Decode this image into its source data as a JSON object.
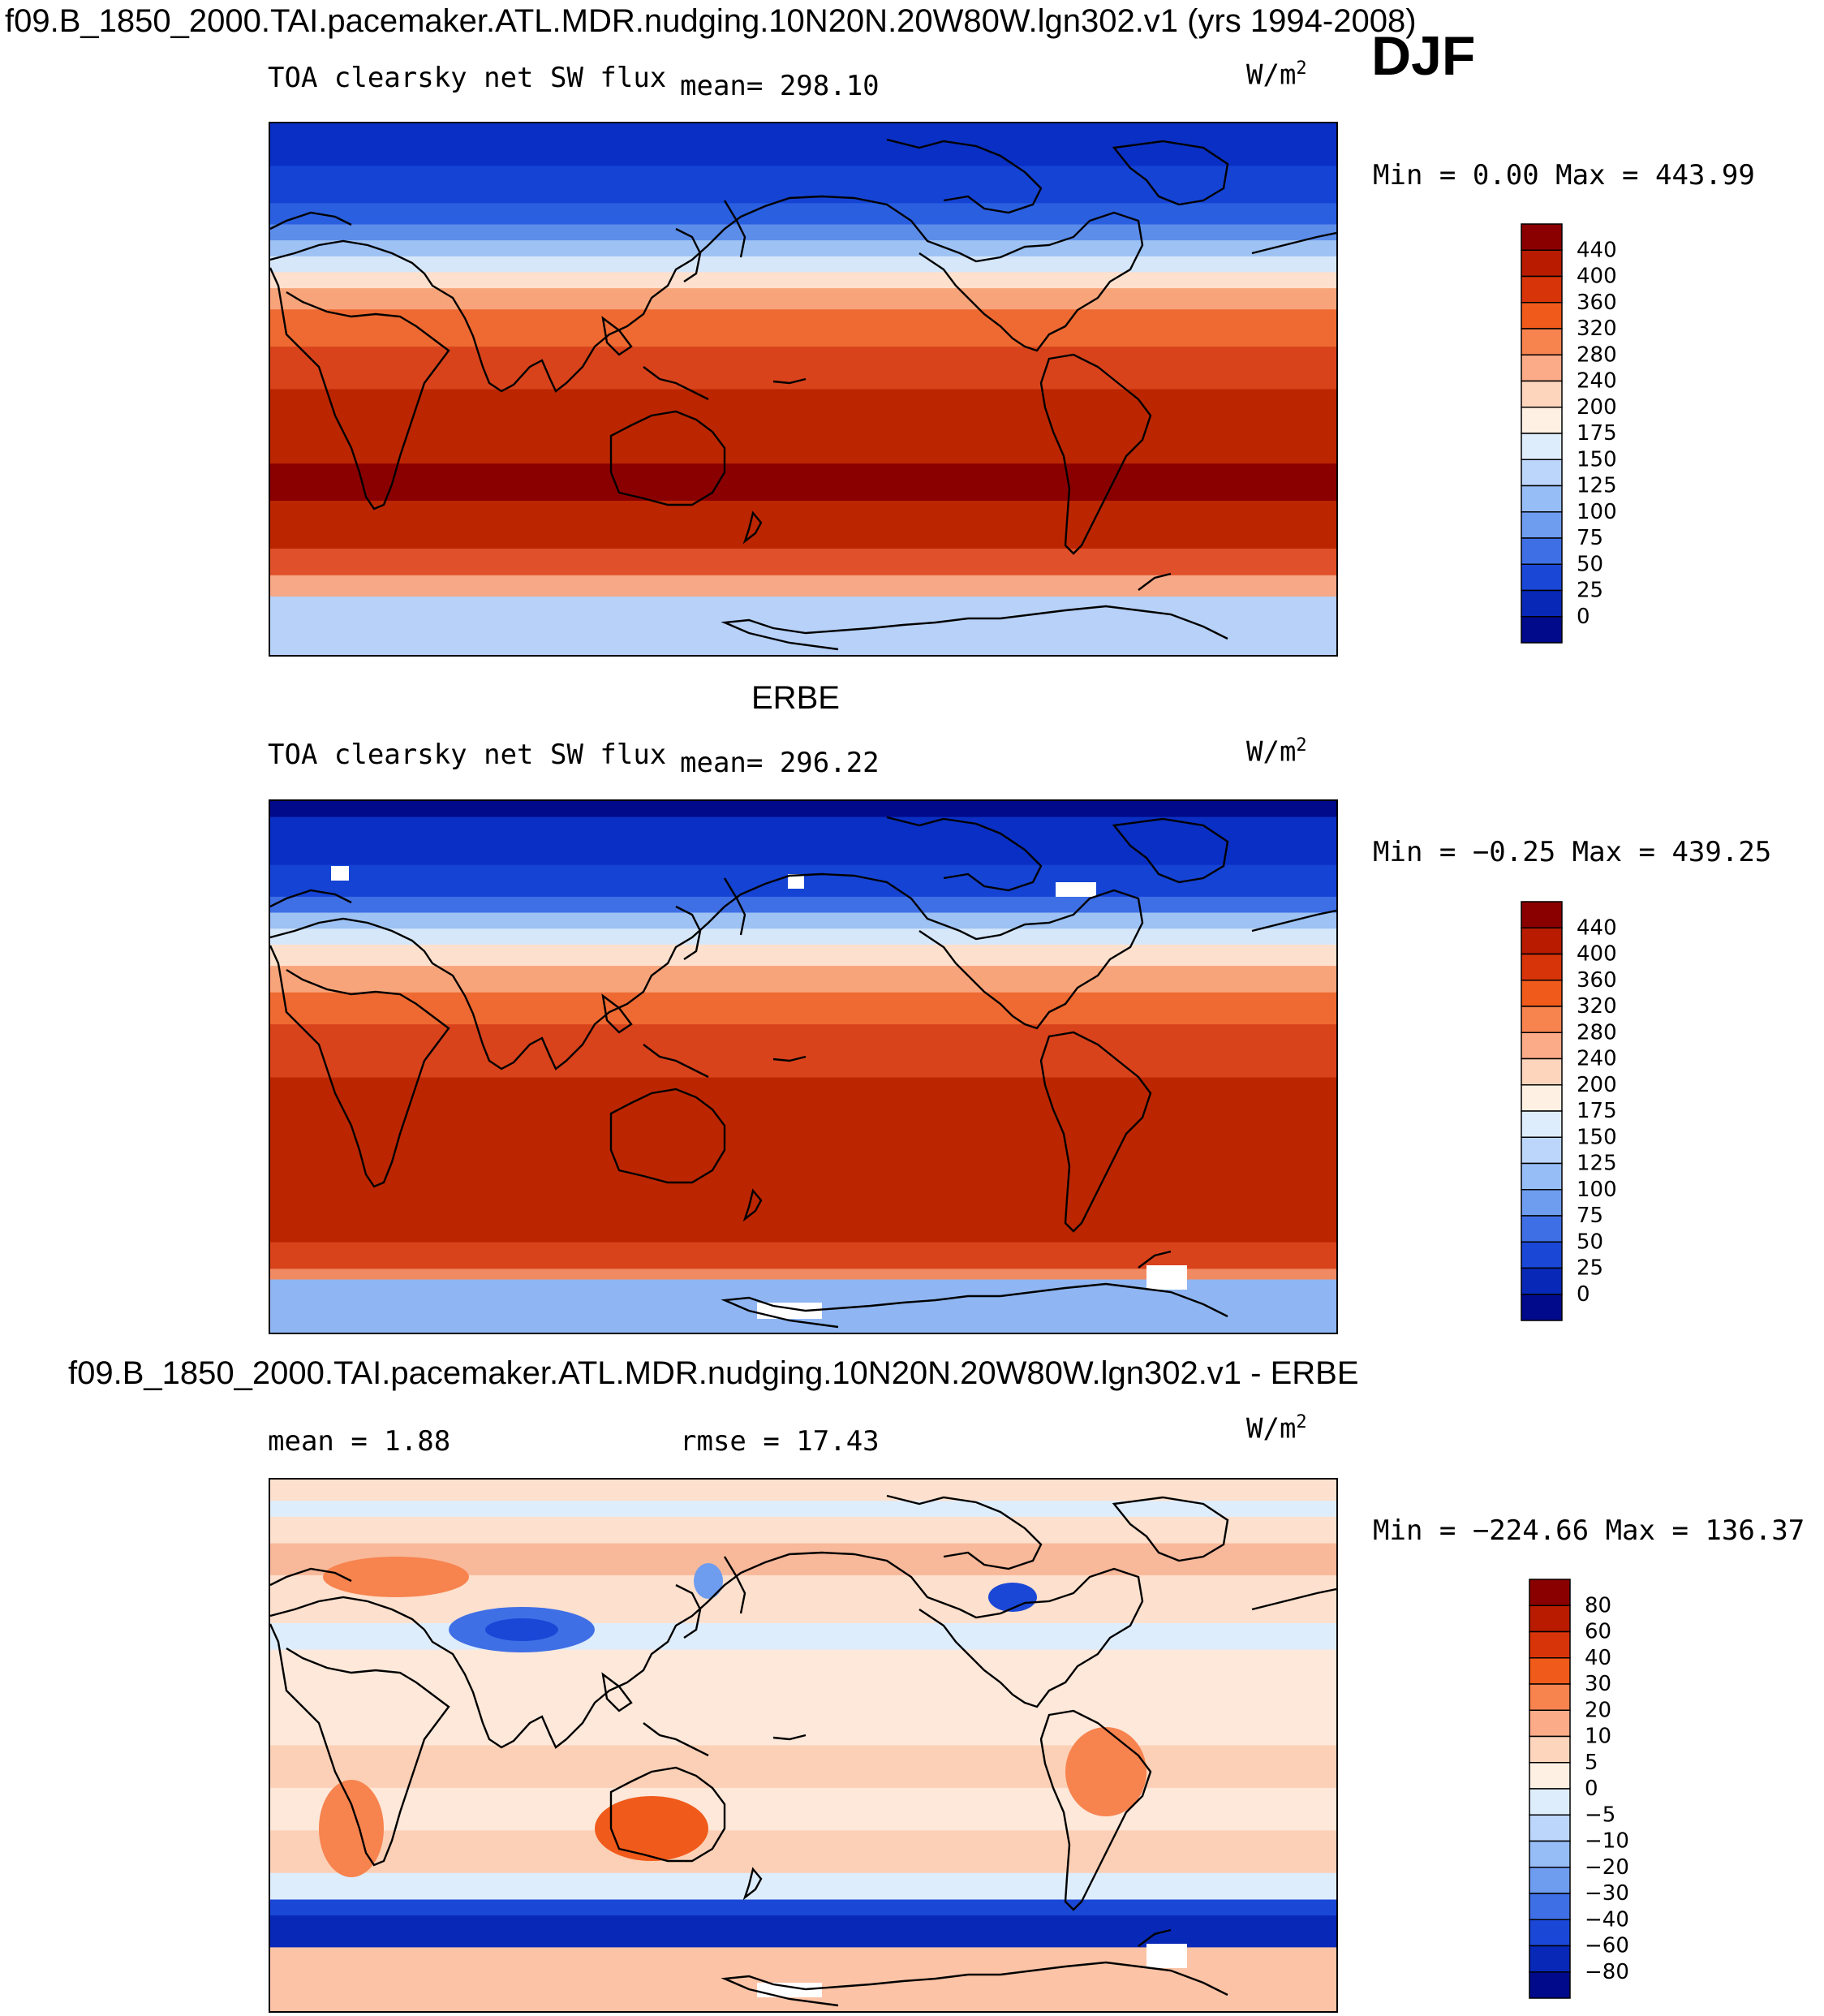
{
  "header": {
    "title": "f09.B_1850_2000.TAI.pacemaker.ATL.MDR.nudging.10N20N.20W80W.lgn302.v1 (yrs 1994-2008)",
    "season": "DJF"
  },
  "panels": [
    {
      "id": "model",
      "heading": "",
      "variable": "TOA clearsky net SW flux",
      "stat": "mean=  298.10",
      "units": "W/m",
      "units_exp": "2",
      "minmax": "Min =    0.00 Max = 443.99",
      "colorbar": {
        "labels": [
          "440",
          "400",
          "360",
          "320",
          "280",
          "240",
          "200",
          "175",
          "150",
          "125",
          "100",
          "75",
          "50",
          "25",
          "0"
        ],
        "colors": [
          "#8a0000",
          "#b81b00",
          "#d8340a",
          "#f05a1a",
          "#f7834f",
          "#fbab88",
          "#fdd5bc",
          "#fff0e4",
          "#deedfc",
          "#bcd6fb",
          "#97bdf7",
          "#6e9cef",
          "#3f6fe5",
          "#1a47d6",
          "#0828b8",
          "#000a8a"
        ]
      },
      "bands": [
        [
          "#0a2fc4",
          0,
          8
        ],
        [
          "#1543d4",
          8,
          15
        ],
        [
          "#2a5fe0",
          15,
          19
        ],
        [
          "#5c8de9",
          19,
          22
        ],
        [
          "#9dc2f3",
          22,
          25
        ],
        [
          "#d6e7fa",
          25,
          28
        ],
        [
          "#fde0cd",
          28,
          31
        ],
        [
          "#f8a47a",
          31,
          35
        ],
        [
          "#ee6a32",
          35,
          42
        ],
        [
          "#d8431c",
          42,
          50
        ],
        [
          "#bb2600",
          50,
          64
        ],
        [
          "#8a0000",
          64,
          71
        ],
        [
          "#bb2600",
          71,
          80
        ],
        [
          "#e0502a",
          80,
          85
        ],
        [
          "#f7a887",
          85,
          89
        ],
        [
          "#b7d1f8",
          89,
          100
        ]
      ]
    },
    {
      "id": "obs",
      "heading": "ERBE",
      "variable": "TOA clearsky net SW flux",
      "stat": "mean=  296.22",
      "units": "W/m",
      "units_exp": "2",
      "minmax": "Min =  −0.25 Max = 439.25",
      "colorbar": {
        "labels": [
          "440",
          "400",
          "360",
          "320",
          "280",
          "240",
          "200",
          "175",
          "150",
          "125",
          "100",
          "75",
          "50",
          "25",
          "0"
        ],
        "colors": [
          "#8a0000",
          "#b81b00",
          "#d8340a",
          "#f05a1a",
          "#f7834f",
          "#fbab88",
          "#fdd5bc",
          "#fff0e4",
          "#deedfc",
          "#bcd6fb",
          "#97bdf7",
          "#6e9cef",
          "#3f6fe5",
          "#1a47d6",
          "#0828b8",
          "#000a8a"
        ]
      },
      "bands": [
        [
          "#000a8a",
          0,
          3
        ],
        [
          "#0a2fc4",
          3,
          12
        ],
        [
          "#1543d4",
          12,
          18
        ],
        [
          "#3f6fe5",
          18,
          21
        ],
        [
          "#9dc2f3",
          21,
          24
        ],
        [
          "#d6e7fa",
          24,
          27
        ],
        [
          "#fde0cd",
          27,
          31
        ],
        [
          "#f8a47a",
          31,
          36
        ],
        [
          "#ee6a32",
          36,
          42
        ],
        [
          "#d8431c",
          42,
          52
        ],
        [
          "#bb2600",
          52,
          83
        ],
        [
          "#d8431c",
          83,
          88
        ],
        [
          "#f08a63",
          88,
          90
        ],
        [
          "#8fb6f2",
          90,
          100
        ]
      ]
    },
    {
      "id": "diff",
      "heading": "f09.B_1850_2000.TAI.pacemaker.ATL.MDR.nudging.10N20N.20W80W.lgn302.v1 - ERBE",
      "stat_mean": "mean =    1.88",
      "stat_rmse": "rmse =   17.43",
      "units": "W/m",
      "units_exp": "2",
      "minmax": "Min = −224.66 Max = 136.37",
      "colorbar": {
        "labels": [
          "80",
          "60",
          "40",
          "30",
          "20",
          "10",
          "5",
          "0",
          "−5",
          "−10",
          "−20",
          "−30",
          "−40",
          "−60",
          "−80"
        ],
        "colors": [
          "#8a0000",
          "#b81b00",
          "#d8340a",
          "#f05a1a",
          "#f7834f",
          "#fbab88",
          "#fdd5bc",
          "#fff0e4",
          "#deedfc",
          "#bcd6fb",
          "#97bdf7",
          "#6e9cef",
          "#3f6fe5",
          "#1a47d6",
          "#0828b8",
          "#000a8a"
        ]
      },
      "bands": [
        [
          "#fde0cd",
          0,
          4
        ],
        [
          "#deedfc",
          4,
          7
        ],
        [
          "#fde0cd",
          7,
          12
        ],
        [
          "#f8b89a",
          12,
          18
        ],
        [
          "#fde0cd",
          18,
          27
        ],
        [
          "#deedfc",
          27,
          32
        ],
        [
          "#fde8da",
          32,
          50
        ],
        [
          "#fcd0b6",
          50,
          58
        ],
        [
          "#fde8da",
          58,
          66
        ],
        [
          "#fcd0b6",
          66,
          74
        ],
        [
          "#deedfc",
          74,
          79
        ],
        [
          "#1a47d6",
          79,
          82
        ],
        [
          "#0828b8",
          82,
          88
        ],
        [
          "#fcc3a6",
          88,
          100
        ]
      ]
    }
  ]
}
